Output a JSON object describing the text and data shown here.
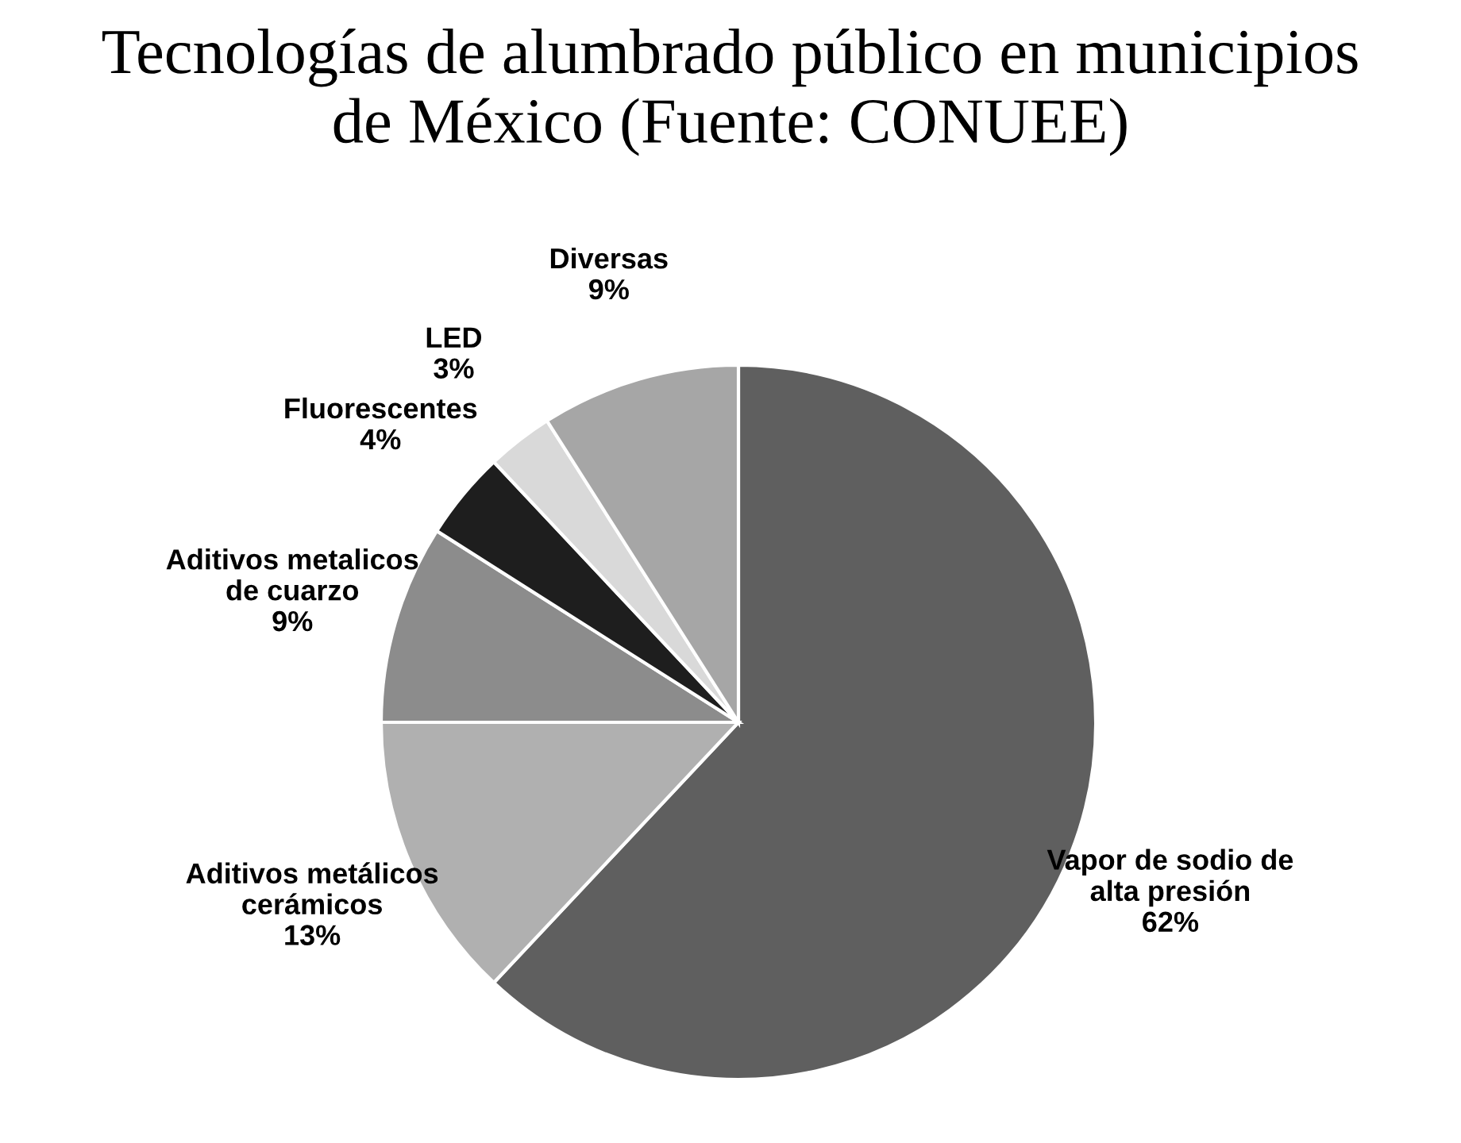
{
  "chart_data": {
    "type": "pie",
    "title": "Tecnologías de alumbrado público en municipios\nde México (Fuente: CONUEE)",
    "categories": [
      "Vapor de sodio de\nalta presión",
      "Aditivos metálicos\ncerámicos",
      "Aditivos metalicos\nde cuarzo",
      "Fluorescentes",
      "LED",
      "Diversas"
    ],
    "values": [
      62,
      13,
      9,
      4,
      3,
      9
    ],
    "colors": [
      "#5f5f5f",
      "#b0b0b0",
      "#8c8c8c",
      "#1e1e1e",
      "#d9d9d9",
      "#a6a6a6"
    ],
    "value_labels": [
      "62%",
      "13%",
      "9%",
      "4%",
      "3%",
      "9%"
    ]
  }
}
